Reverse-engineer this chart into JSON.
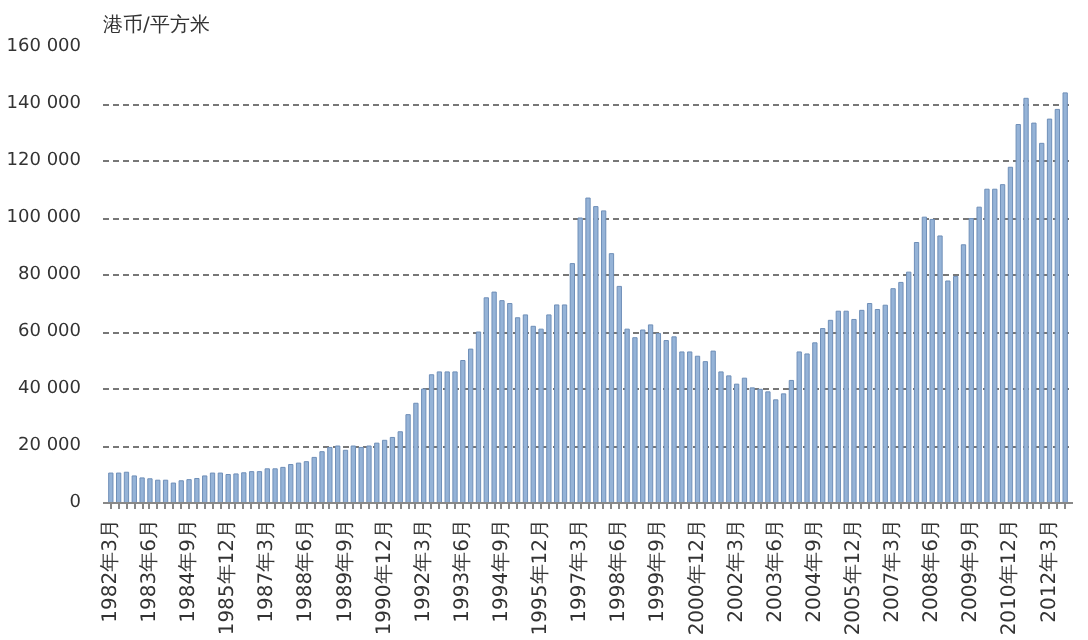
{
  "chart_data": {
    "type": "bar",
    "ylabel": "港币/平方米",
    "categories": [
      "1982年3月",
      null,
      null,
      null,
      null,
      "1983年6月",
      null,
      null,
      null,
      null,
      "1984年9月",
      null,
      null,
      null,
      null,
      "1985年12月",
      null,
      null,
      null,
      null,
      "1987年3月",
      null,
      null,
      null,
      null,
      "1988年6月",
      null,
      null,
      null,
      null,
      "1989年9月",
      null,
      null,
      null,
      null,
      "1990年12月",
      null,
      null,
      null,
      null,
      "1992年3月",
      null,
      null,
      null,
      null,
      "1993年6月",
      null,
      null,
      null,
      null,
      "1994年9月",
      null,
      null,
      null,
      null,
      "1995年12月",
      null,
      null,
      null,
      null,
      "1997年3月",
      null,
      null,
      null,
      null,
      "1998年6月",
      null,
      null,
      null,
      null,
      "1999年9月",
      null,
      null,
      null,
      null,
      "2000年12月",
      null,
      null,
      null,
      null,
      "2002年3月",
      null,
      null,
      null,
      null,
      "2003年6月",
      null,
      null,
      null,
      null,
      "2004年9月",
      null,
      null,
      null,
      null,
      "2005年12月",
      null,
      null,
      null,
      null,
      "2007年3月",
      null,
      null,
      null,
      null,
      "2008年6月",
      null,
      null,
      null,
      null,
      "2009年9月",
      null,
      null,
      null,
      null,
      "2010年12月",
      null,
      null,
      null,
      null,
      "2012年3月",
      null,
      null
    ],
    "values": [
      10500,
      10500,
      10800,
      9500,
      8800,
      8500,
      8000,
      8000,
      7000,
      7800,
      8200,
      8600,
      9500,
      10500,
      10500,
      10000,
      10200,
      10600,
      11000,
      11000,
      12000,
      12000,
      12500,
      13500,
      14000,
      14500,
      16000,
      18000,
      19500,
      20000,
      18500,
      20000,
      19500,
      20000,
      21000,
      22000,
      23000,
      25000,
      31000,
      35000,
      40000,
      45000,
      46000,
      46000,
      46000,
      50000,
      54000,
      60000,
      72000,
      74000,
      71000,
      70000,
      65000,
      66000,
      62000,
      61000,
      66000,
      69500,
      69500,
      84000,
      100000,
      107000,
      104000,
      102500,
      87500,
      76000,
      61000,
      58000,
      60700,
      62500,
      59500,
      57000,
      58300,
      53000,
      53000,
      51500,
      49600,
      53300,
      46000,
      44600,
      41700,
      43800,
      40400,
      39900,
      39000,
      36200,
      38300,
      43000,
      53000,
      52300,
      56200,
      61200,
      64100,
      67300,
      67300,
      64400,
      67600,
      70000,
      67900,
      69400,
      75200,
      77400,
      81000,
      91400,
      100300,
      99500,
      93700,
      77900,
      79500,
      90600,
      99800,
      103800,
      110100,
      110100,
      111700,
      117800,
      132800,
      142000,
      133300,
      126200,
      134700,
      138100,
      143900
    ],
    "color": "#95b3d7",
    "ylim": [
      0,
      160000
    ],
    "yticks": [
      0,
      {
        "value": 20000,
        "label": "20 000"
      },
      {
        "value": 40000,
        "label": "40 000"
      },
      {
        "value": 60000,
        "label": "60 000"
      },
      {
        "value": 80000,
        "label": "80 000"
      },
      {
        "value": 100000,
        "label": "100 000"
      },
      {
        "value": 120000,
        "label": "120 000"
      },
      {
        "value": 140000,
        "label": "140 000"
      },
      {
        "value": 160000,
        "label": "160 000"
      }
    ],
    "grid": "y"
  }
}
